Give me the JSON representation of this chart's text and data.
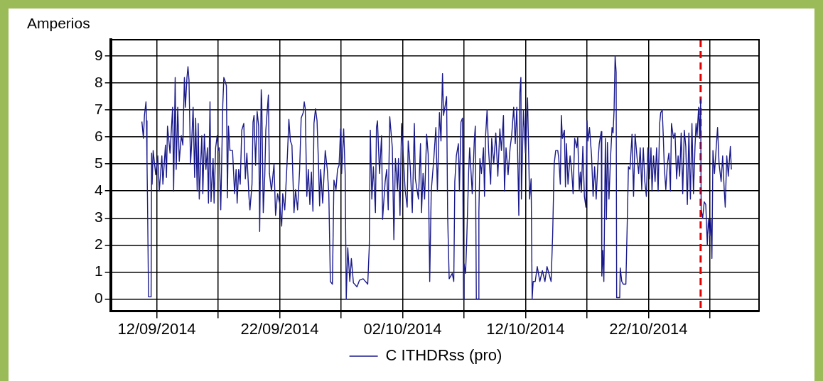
{
  "chart_data": {
    "type": "line",
    "ylabel": "Amperios",
    "legend": "bottom",
    "grid": true,
    "marker": "none",
    "line_style": "solid",
    "xlim": [
      "2014-09-08T06:00",
      "2014-10-31T00:00"
    ],
    "xticks": [
      {
        "value": "2014-09-12",
        "label": "12/09/2014"
      },
      {
        "value": "2014-09-17",
        "label": null
      },
      {
        "value": "2014-09-22",
        "label": "22/09/2014"
      },
      {
        "value": "2014-09-27",
        "label": null
      },
      {
        "value": "2014-10-02",
        "label": "02/10/2014"
      },
      {
        "value": "2014-10-07",
        "label": null
      },
      {
        "value": "2014-10-12",
        "label": "12/10/2014"
      },
      {
        "value": "2014-10-17",
        "label": null
      },
      {
        "value": "2014-10-22",
        "label": "22/10/2014"
      },
      {
        "value": "2014-10-27",
        "label": null
      }
    ],
    "ylim": [
      -0.45,
      9.6
    ],
    "yticks": [
      0,
      1,
      2,
      3,
      4,
      5,
      6,
      7,
      8,
      9
    ],
    "ref_lines": [
      {
        "axis": "x",
        "value": "2014-10-26T06:00",
        "color": "#e00000",
        "line_style": "dashed"
      }
    ],
    "x": [
      "2014-09-10T19:00",
      "2014-09-10T22:00",
      "2014-09-11T00:00",
      "2014-09-11T03:00",
      "2014-09-11T04:00",
      "2014-09-11T05:00",
      "2014-09-11T06:00",
      "2014-09-11T08:00",
      "2014-09-11T13:00",
      "2014-09-11T14:00",
      "2014-09-11T15:00",
      "2014-09-11T17:00",
      "2014-09-11T22:00",
      "2014-09-12T02:00",
      "2014-09-12T05:00",
      "2014-09-12T10:00",
      "2014-09-12T12:00",
      "2014-09-12T17:00",
      "2014-09-12T19:00",
      "2014-09-12T21:00",
      "2014-09-13T02:00",
      "2014-09-13T07:00",
      "2014-09-13T09:00",
      "2014-09-13T12:00",
      "2014-09-13T14:00",
      "2014-09-13T17:00",
      "2014-09-13T20:00",
      "2014-09-14T00:00",
      "2014-09-14T03:00",
      "2014-09-14T06:00",
      "2014-09-14T08:00",
      "2014-09-14T11:00",
      "2014-09-14T13:00",
      "2014-09-14T15:00",
      "2014-09-14T18:00",
      "2014-09-14T20:00",
      "2014-09-14T23:00",
      "2014-09-15T02:00",
      "2014-09-15T04:00",
      "2014-09-15T07:00",
      "2014-09-15T09:00",
      "2014-09-15T11:00",
      "2014-09-15T16:00",
      "2014-09-15T18:00",
      "2014-09-15T21:00",
      "2014-09-16T00:00",
      "2014-09-16T03:00",
      "2014-09-16T05:00",
      "2014-09-16T08:00",
      "2014-09-16T10:00",
      "2014-09-16T14:00",
      "2014-09-16T16:00",
      "2014-09-16T19:00",
      "2014-09-16T22:00",
      "2014-09-17T00:00",
      "2014-09-17T02:00",
      "2014-09-17T05:00",
      "2014-09-17T09:00",
      "2014-09-17T11:00",
      "2014-09-17T13:00",
      "2014-09-17T16:00",
      "2014-09-17T18:00",
      "2014-09-17T20:00",
      "2014-09-17T23:00",
      "2014-09-18T04:00",
      "2014-09-18T06:00",
      "2014-09-18T08:00",
      "2014-09-18T11:00",
      "2014-09-18T13:00",
      "2014-09-18T16:00",
      "2014-09-18T19:00",
      "2014-09-18T22:00",
      "2014-09-19T02:00",
      "2014-09-19T05:00",
      "2014-09-19T08:00",
      "2014-09-19T12:00",
      "2014-09-19T14:00",
      "2014-09-19T18:00",
      "2014-09-19T20:00",
      "2014-09-19T22:00",
      "2014-09-20T01:00",
      "2014-09-20T04:00",
      "2014-09-20T07:00",
      "2014-09-20T09:00",
      "2014-09-20T12:00",
      "2014-09-20T13:00",
      "2014-09-20T16:00",
      "2014-09-20T19:00",
      "2014-09-20T21:00",
      "2014-09-21T02:00",
      "2014-09-21T04:00",
      "2014-09-21T08:00",
      "2014-09-21T13:00",
      "2014-09-21T16:00",
      "2014-09-21T20:00",
      "2014-09-22T00:00",
      "2014-09-22T04:00",
      "2014-09-22T06:00",
      "2014-09-22T10:00",
      "2014-09-22T15:00",
      "2014-09-22T18:00",
      "2014-09-22T21:00",
      "2014-09-23T00:00",
      "2014-09-23T04:00",
      "2014-09-23T07:00",
      "2014-09-23T11:00",
      "2014-09-23T15:00",
      "2014-09-23T18:00",
      "2014-09-23T22:00",
      "2014-09-24T00:00",
      "2014-09-24T02:00",
      "2014-09-24T05:00",
      "2014-09-24T08:00",
      "2014-09-24T11:00",
      "2014-09-24T14:00",
      "2014-09-24T17:00",
      "2014-09-24T19:00",
      "2014-09-24T22:00",
      "2014-09-25T01:00",
      "2014-09-25T04:00",
      "2014-09-25T06:00",
      "2014-09-25T08:00",
      "2014-09-25T12:00",
      "2014-09-25T17:00",
      "2014-09-25T21:00",
      "2014-09-26T00:00",
      "2014-09-26T03:00",
      "2014-09-26T07:00",
      "2014-09-26T10:00",
      "2014-09-26T14:00",
      "2014-09-26T17:00",
      "2014-09-26T20:00",
      "2014-09-26T23:00",
      "2014-09-27T01:00",
      "2014-09-27T05:00",
      "2014-09-27T08:00",
      "2014-09-27T10:00",
      "2014-09-27T13:00",
      "2014-09-27T17:00",
      "2014-09-27T20:00",
      "2014-09-28T00:00",
      "2014-09-28T07:00",
      "2014-09-28T12:00",
      "2014-09-28T19:00",
      "2014-09-29T04:00",
      "2014-09-29T07:00",
      "2014-09-29T09:00",
      "2014-09-29T12:00",
      "2014-09-29T15:00",
      "2014-09-29T19:00",
      "2014-09-29T21:00",
      "2014-09-29T23:00",
      "2014-09-30T03:00",
      "2014-09-30T07:00",
      "2014-09-30T09:00",
      "2014-09-30T14:00",
      "2014-09-30T17:00",
      "2014-09-30T20:00",
      "2014-09-30T23:00",
      "2014-10-01T04:00",
      "2014-10-01T07:00",
      "2014-10-01T10:00",
      "2014-10-01T14:00",
      "2014-10-01T16:00",
      "2014-10-01T19:00",
      "2014-10-01T22:00",
      "2014-10-02T01:00",
      "2014-10-02T05:00",
      "2014-10-02T09:00",
      "2014-10-02T11:00",
      "2014-10-02T15:00",
      "2014-10-02T19:00",
      "2014-10-02T23:00",
      "2014-10-03T01:00",
      "2014-10-03T07:00",
      "2014-10-03T11:00",
      "2014-10-03T13:00",
      "2014-10-03T16:00",
      "2014-10-03T19:00",
      "2014-10-03T23:00",
      "2014-10-04T02:00",
      "2014-10-04T05:00",
      "2014-10-04T08:00",
      "2014-10-04T13:00",
      "2014-10-04T17:00",
      "2014-10-04T20:00",
      "2014-10-05T00:00",
      "2014-10-05T03:00",
      "2014-10-05T06:00",
      "2014-10-05T08:00",
      "2014-10-05T12:00",
      "2014-10-05T14:00",
      "2014-10-05T16:00",
      "2014-10-05T19:00",
      "2014-10-06T01:00",
      "2014-10-06T04:00",
      "2014-10-06T06:00",
      "2014-10-06T09:00",
      "2014-10-06T13:00",
      "2014-10-06T15:00",
      "2014-10-06T18:00",
      "2014-10-06T21:00",
      "2014-10-06T23:00",
      "2014-10-07T00:00",
      "2014-10-07T03:00",
      "2014-10-07T05:00",
      "2014-10-07T09:00",
      "2014-10-07T11:00",
      "2014-10-07T16:00",
      "2014-10-07T20:00",
      "2014-10-07T22:00",
      "2014-10-08T00:00",
      "2014-10-08T04:00",
      "2014-10-08T05:00",
      "2014-10-08T07:00",
      "2014-10-08T10:00",
      "2014-10-08T14:00",
      "2014-10-08T16:00",
      "2014-10-08T18:00",
      "2014-10-08T21:00",
      "2014-10-09T00:00",
      "2014-10-09T04:00",
      "2014-10-09T06:00",
      "2014-10-09T10:00",
      "2014-10-09T14:00",
      "2014-10-09T18:00",
      "2014-10-09T22:00",
      "2014-10-10T01:00",
      "2014-10-10T05:00",
      "2014-10-10T07:00",
      "2014-10-10T10:00",
      "2014-10-10T14:00",
      "2014-10-10T18:00",
      "2014-10-10T21:00",
      "2014-10-11T01:00",
      "2014-10-11T04:00",
      "2014-10-11T07:00",
      "2014-10-11T11:00",
      "2014-10-11T13:00",
      "2014-10-11T15:00",
      "2014-10-11T16:00",
      "2014-10-11T20:00",
      "2014-10-12T00:00",
      "2014-10-12T04:00",
      "2014-10-12T08:00",
      "2014-10-12T11:00",
      "2014-10-12T13:00",
      "2014-10-12T15:00",
      "2014-10-12T19:00",
      "2014-10-12T23:00",
      "2014-10-13T04:00",
      "2014-10-13T09:00",
      "2014-10-13T14:00",
      "2014-10-13T18:00",
      "2014-10-14T02:00",
      "2014-10-14T05:00",
      "2014-10-14T08:00",
      "2014-10-14T11:00",
      "2014-10-14T15:00",
      "2014-10-14T17:00",
      "2014-10-14T20:00",
      "2014-10-14T22:00",
      "2014-10-15T00:00",
      "2014-10-15T04:00",
      "2014-10-15T06:00",
      "2014-10-15T08:00",
      "2014-10-15T11:00",
      "2014-10-15T15:00",
      "2014-10-15T18:00",
      "2014-10-15T21:00",
      "2014-10-16T00:00",
      "2014-10-16T04:00",
      "2014-10-16T06:00",
      "2014-10-16T09:00",
      "2014-10-16T11:00",
      "2014-10-16T13:00",
      "2014-10-16T16:00",
      "2014-10-16T19:00",
      "2014-10-16T22:00",
      "2014-10-17T00:00",
      "2014-10-17T02:00",
      "2014-10-17T05:00",
      "2014-10-17T09:00",
      "2014-10-17T12:00",
      "2014-10-17T15:00",
      "2014-10-17T18:00",
      "2014-10-17T21:00",
      "2014-10-18T00:00",
      "2014-10-18T04:00",
      "2014-10-18T05:00",
      "2014-10-18T07:00",
      "2014-10-18T09:00",
      "2014-10-18T12:00",
      "2014-10-18T14:00",
      "2014-10-18T16:00",
      "2014-10-18T19:00",
      "2014-10-18T22:00",
      "2014-10-19T01:00",
      "2014-10-19T03:00",
      "2014-10-19T05:00",
      "2014-10-19T07:00",
      "2014-10-19T09:00",
      "2014-10-19T10:00",
      "2014-10-19T16:00",
      "2014-10-19T17:00",
      "2014-10-19T20:00",
      "2014-10-19T23:00",
      "2014-10-20T04:00",
      "2014-10-20T07:00",
      "2014-10-20T09:00",
      "2014-10-20T12:00",
      "2014-10-20T16:00",
      "2014-10-20T19:00",
      "2014-10-20T22:00",
      "2014-10-21T02:00",
      "2014-10-21T05:00",
      "2014-10-21T08:00",
      "2014-10-21T11:00",
      "2014-10-21T14:00",
      "2014-10-21T17:00",
      "2014-10-21T20:00",
      "2014-10-21T23:00",
      "2014-10-22T02:00",
      "2014-10-22T05:00",
      "2014-10-22T07:00",
      "2014-10-22T10:00",
      "2014-10-22T13:00",
      "2014-10-22T16:00",
      "2014-10-22T19:00",
      "2014-10-22T22:00",
      "2014-10-23T00:00",
      "2014-10-23T03:00",
      "2014-10-23T05:00",
      "2014-10-23T07:00",
      "2014-10-23T10:00",
      "2014-10-23T13:00",
      "2014-10-23T16:00",
      "2014-10-23T19:00",
      "2014-10-23T21:00",
      "2014-10-24T01:00",
      "2014-10-24T04:00",
      "2014-10-24T07:00",
      "2014-10-24T10:00",
      "2014-10-24T13:00",
      "2014-10-24T16:00",
      "2014-10-24T19:00",
      "2014-10-24T22:00",
      "2014-10-25T01:00",
      "2014-10-25T04:00",
      "2014-10-25T07:00",
      "2014-10-25T10:00",
      "2014-10-25T13:00",
      "2014-10-25T16:00",
      "2014-10-25T19:00",
      "2014-10-25T21:00",
      "2014-10-25T23:00",
      "2014-10-26T02:00",
      "2014-10-26T04:00",
      "2014-10-26T06:00",
      "2014-10-26T07:00",
      "2014-10-26T10:00",
      "2014-10-26T13:00",
      "2014-10-26T16:00",
      "2014-10-26T19:00",
      "2014-10-26T21:00",
      "2014-10-27T00:00",
      "2014-10-27T02:00",
      "2014-10-27T04:00",
      "2014-10-27T06:00",
      "2014-10-27T09:00",
      "2014-10-27T12:00",
      "2014-10-27T15:00",
      "2014-10-27T18:00",
      "2014-10-27T22:00",
      "2014-10-28T01:00",
      "2014-10-28T04:00",
      "2014-10-28T06:00",
      "2014-10-28T09:00",
      "2014-10-28T12:00",
      "2014-10-28T16:00",
      "2014-10-28T18:00"
    ],
    "series": [
      {
        "name": "C ITHDRss (pro)",
        "color": "#1a1a8c",
        "values": [
          6.57,
          5.95,
          6.8,
          7.3,
          6.6,
          5.1,
          3.6,
          0.08,
          0.08,
          5.4,
          4.25,
          5.5,
          4.6,
          5.3,
          4.0,
          5.3,
          4.25,
          5.7,
          4.5,
          6.4,
          5.4,
          7.1,
          4.0,
          8.2,
          4.8,
          7.1,
          5.1,
          6.05,
          5.7,
          8.2,
          7.1,
          8.2,
          8.6,
          8.1,
          5.0,
          5.7,
          7.1,
          4.5,
          6.7,
          4.0,
          6.5,
          3.7,
          6.05,
          3.9,
          6.1,
          4.8,
          5.6,
          3.55,
          7.3,
          3.6,
          5.2,
          3.55,
          5.6,
          6.05,
          5.5,
          5.6,
          3.3,
          7.2,
          8.2,
          8.1,
          7.9,
          3.75,
          6.4,
          5.5,
          5.5,
          4.7,
          3.9,
          4.8,
          3.55,
          4.8,
          4.25,
          6.25,
          6.5,
          4.45,
          5.4,
          3.8,
          3.3,
          4.25,
          6.55,
          6.8,
          4.95,
          6.95,
          6.4,
          2.5,
          7.75,
          7.4,
          3.2,
          4.6,
          6.25,
          7.55,
          4.65,
          4.0,
          5.0,
          3.1,
          3.9,
          3.55,
          2.7,
          3.9,
          3.3,
          5.25,
          6.65,
          5.85,
          5.7,
          3.2,
          4.05,
          3.3,
          4.8,
          6.7,
          6.9,
          7.3,
          7.05,
          3.8,
          4.8,
          3.5,
          4.7,
          3.25,
          6.5,
          7.05,
          6.6,
          4.9,
          3.45,
          4.8,
          3.55,
          5.5,
          4.8,
          3.9,
          0.65,
          0.55,
          4.4,
          4.05,
          4.8,
          4.95,
          6.3,
          4.65,
          6.3,
          4.6,
          0.0,
          1.9,
          0.65,
          1.5,
          0.6,
          0.45,
          0.7,
          0.75,
          0.55,
          1.95,
          6.25,
          3.7,
          4.9,
          3.2,
          6.35,
          6.6,
          4.65,
          6.05,
          2.95,
          4.35,
          4.8,
          3.3,
          6.75,
          5.6,
          2.2,
          5.2,
          4.05,
          5.2,
          3.1,
          6.5,
          5.4,
          4.05,
          3.4,
          5.85,
          4.9,
          3.2,
          6.5,
          4.45,
          3.7,
          5.75,
          3.2,
          4.65,
          3.7,
          6.1,
          5.35,
          0.65,
          4.0,
          5.2,
          6.35,
          4.0,
          6.9,
          5.85,
          8.35,
          6.8,
          7.25,
          7.5,
          3.1,
          0.75,
          0.95,
          0.65,
          4.35,
          5.3,
          5.75,
          4.0,
          6.55,
          6.7,
          0.0,
          1.3,
          0.95,
          2.0,
          4.7,
          5.6,
          3.9,
          5.85,
          6.4,
          0.0,
          0.0,
          3.2,
          5.2,
          4.65,
          5.6,
          3.8,
          6.0,
          7.0,
          5.5,
          4.25,
          5.95,
          5.0,
          6.15,
          4.55,
          6.3,
          5.5,
          6.8,
          4.0,
          5.6,
          4.6,
          5.6,
          6.05,
          7.1,
          5.75,
          7.1,
          3.1,
          7.65,
          8.2,
          3.7,
          7.0,
          5.4,
          7.45,
          3.7,
          4.45,
          0.0,
          0.65,
          0.65,
          1.2,
          0.65,
          1.05,
          0.65,
          1.2,
          0.65,
          2.35,
          5.0,
          5.5,
          5.5,
          5.2,
          4.25,
          6.8,
          5.95,
          6.25,
          4.15,
          5.75,
          4.25,
          5.3,
          4.8,
          3.9,
          5.95,
          5.6,
          6.0,
          4.05,
          4.7,
          3.95,
          5.65,
          3.8,
          3.4,
          6.6,
          5.85,
          6.35,
          5.3,
          3.8,
          4.9,
          3.7,
          4.9,
          5.75,
          6.2,
          0.85,
          1.8,
          0.65,
          5.95,
          2.95,
          5.8,
          3.7,
          5.2,
          6.35,
          6.15,
          7.0,
          9.0,
          8.4,
          0.05,
          0.05,
          1.15,
          0.65,
          0.55,
          0.55,
          3.1,
          4.9,
          4.8,
          6.1,
          3.8,
          6.1,
          5.2,
          4.65,
          5.6,
          4.05,
          5.6,
          4.35,
          3.8,
          5.6,
          4.45,
          5.6,
          4.0,
          5.3,
          4.35,
          5.6,
          4.0,
          6.5,
          6.9,
          7.0,
          6.05,
          4.9,
          4.05,
          5.0,
          5.4,
          4.0,
          6.5,
          5.95,
          6.15,
          4.45,
          5.3,
          4.55,
          6.15,
          3.9,
          6.25,
          5.65,
          3.5,
          6.15,
          3.7,
          6.5,
          3.9,
          5.65,
          6.5,
          6.05,
          7.1,
          5.95,
          7.4,
          3.3,
          3.0,
          3.6,
          3.5,
          2.0,
          2.95,
          2.35,
          2.95,
          1.5,
          5.5,
          4.65,
          5.5,
          6.35,
          5.0,
          4.35,
          5.3,
          4.05,
          3.4,
          5.3,
          4.55,
          5.65,
          4.8
        ]
      }
    ]
  }
}
